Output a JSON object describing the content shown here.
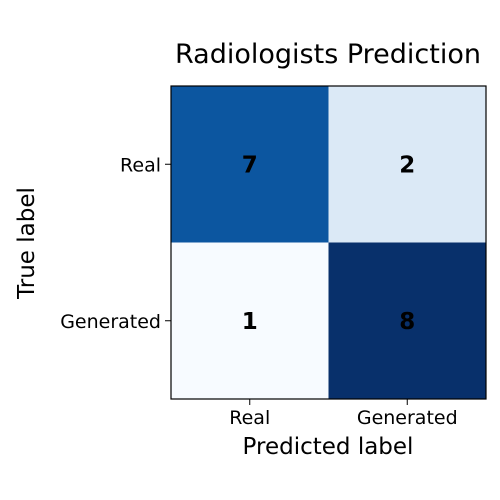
{
  "chart_data": {
    "type": "heatmap",
    "title": "Radiologists Prediction",
    "xlabel": "Predicted label",
    "ylabel": "True label",
    "x_categories": [
      "Real",
      "Generated"
    ],
    "y_categories": [
      "Real",
      "Generated"
    ],
    "values": [
      [
        7,
        2
      ],
      [
        1,
        8
      ]
    ],
    "colormap": "Blues",
    "value_range": [
      1,
      8
    ],
    "cell_label_color": "#000000",
    "grid": false
  }
}
